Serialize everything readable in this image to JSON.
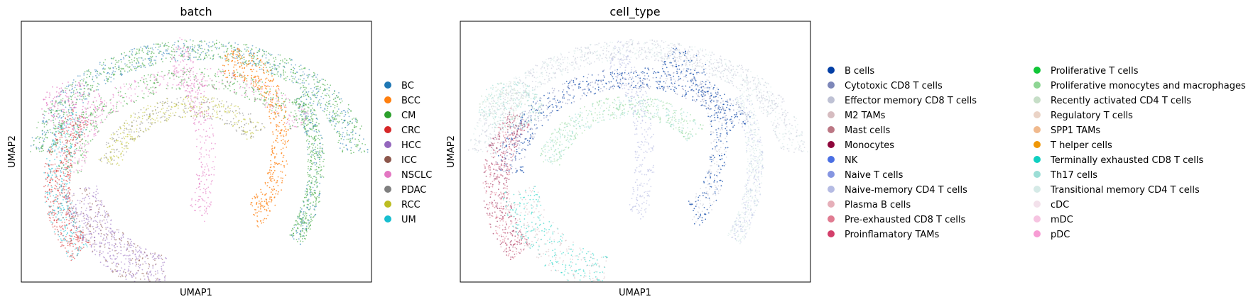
{
  "chart_data": [
    {
      "type": "scatter",
      "title": "batch",
      "xlabel": "UMAP1",
      "ylabel": "UMAP2",
      "grid": false,
      "ticks": false,
      "legend_placement": "right, single column",
      "categories": [
        {
          "name": "BC",
          "color": "#1f77b4"
        },
        {
          "name": "BCC",
          "color": "#ff7f0e"
        },
        {
          "name": "CM",
          "color": "#2ca02c"
        },
        {
          "name": "CRC",
          "color": "#d62728"
        },
        {
          "name": "HCC",
          "color": "#9467bd"
        },
        {
          "name": "ICC",
          "color": "#8c564b"
        },
        {
          "name": "NSCLC",
          "color": "#e377c2"
        },
        {
          "name": "PDAC",
          "color": "#7f7f7f"
        },
        {
          "name": "RCC",
          "color": "#bcbd22"
        },
        {
          "name": "UM",
          "color": "#17becf"
        }
      ]
    },
    {
      "type": "scatter",
      "title": "cell_type",
      "xlabel": "UMAP1",
      "ylabel": "UMAP2",
      "grid": false,
      "ticks": false,
      "legend_placement": "right, two columns",
      "categories": [
        {
          "name": "B cells",
          "color": "#023fa5"
        },
        {
          "name": "Cytotoxic CD8 T cells",
          "color": "#7d87b9"
        },
        {
          "name": "Effector memory CD8 T cells",
          "color": "#bec1d4"
        },
        {
          "name": "M2 TAMs",
          "color": "#d6bcc0"
        },
        {
          "name": "Mast cells",
          "color": "#bb7784"
        },
        {
          "name": "Monocytes",
          "color": "#8e063b"
        },
        {
          "name": "NK",
          "color": "#4a6fe3"
        },
        {
          "name": "Naive T cells",
          "color": "#8595e1"
        },
        {
          "name": "Naive-memory CD4 T cells",
          "color": "#b5bbe3"
        },
        {
          "name": "Plasma B cells",
          "color": "#e6afb9"
        },
        {
          "name": "Pre-exhausted CD8 T cells",
          "color": "#e07b91"
        },
        {
          "name": "Proinflamatory TAMs",
          "color": "#d33f6a"
        },
        {
          "name": "Proliferative T cells",
          "color": "#11c638"
        },
        {
          "name": "Proliferative monocytes and macrophages",
          "color": "#8dd593"
        },
        {
          "name": "Recently activated CD4 T cells",
          "color": "#c6dec7"
        },
        {
          "name": "Regulatory T cells",
          "color": "#ead3c6"
        },
        {
          "name": "SPP1 TAMs",
          "color": "#f0b98d"
        },
        {
          "name": "T helper cells",
          "color": "#ef9708"
        },
        {
          "name": "Terminally exhausted CD8 T cells",
          "color": "#0fcfc0"
        },
        {
          "name": "Th17 cells",
          "color": "#9cded6"
        },
        {
          "name": "Transitional memory CD4 T cells",
          "color": "#d5eae7"
        },
        {
          "name": "cDC",
          "color": "#f3e1eb"
        },
        {
          "name": "mDC",
          "color": "#f6c4e1"
        },
        {
          "name": "pDC",
          "color": "#f79cd4"
        }
      ]
    }
  ]
}
